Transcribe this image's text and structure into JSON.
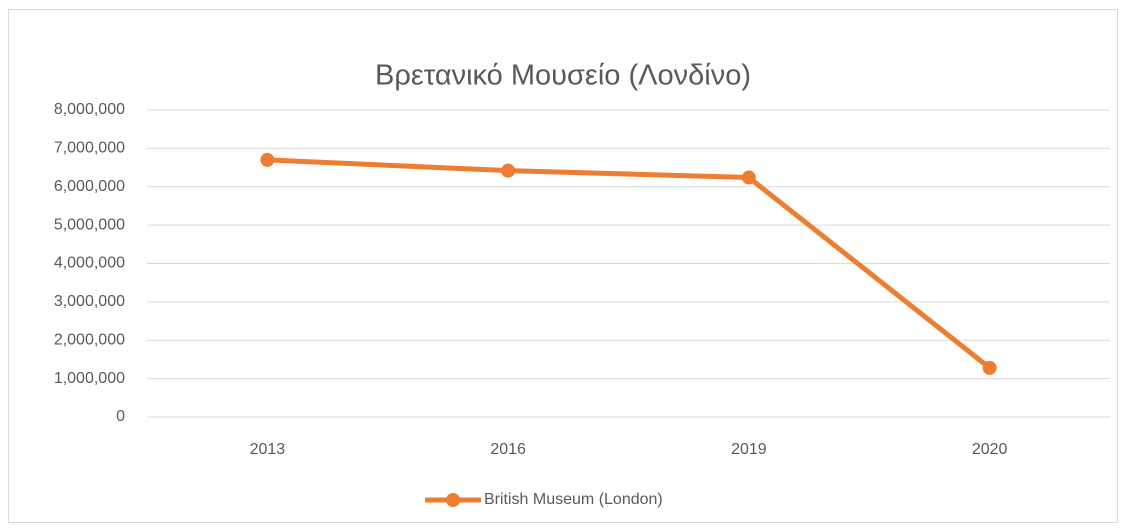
{
  "chart_data": {
    "type": "line",
    "title": "Βρετανικό Μουσείο (Λονδίνο)",
    "categories": [
      "2013",
      "2016",
      "2019",
      "2020"
    ],
    "series": [
      {
        "name": "British Museum (London)",
        "color": "#ed7d31",
        "values": [
          6700000,
          6420000,
          6240000,
          1280000
        ]
      }
    ],
    "ylim": [
      0,
      8000000
    ],
    "yticks": [
      0,
      {
        "value": 1000000,
        "label": "1,000,000"
      },
      {
        "value": 2000000,
        "label": "2,000,000"
      },
      {
        "value": 3000000,
        "label": "3,000,000"
      },
      {
        "value": 4000000,
        "label": "4,000,000"
      },
      {
        "value": 5000000,
        "label": "5,000,000"
      },
      {
        "value": 6000000,
        "label": "6,000,000"
      },
      {
        "value": 7000000,
        "label": "7,000,000"
      },
      {
        "value": 8000000,
        "label": "8,000,000"
      }
    ],
    "grid": true,
    "legend": "bottom"
  }
}
